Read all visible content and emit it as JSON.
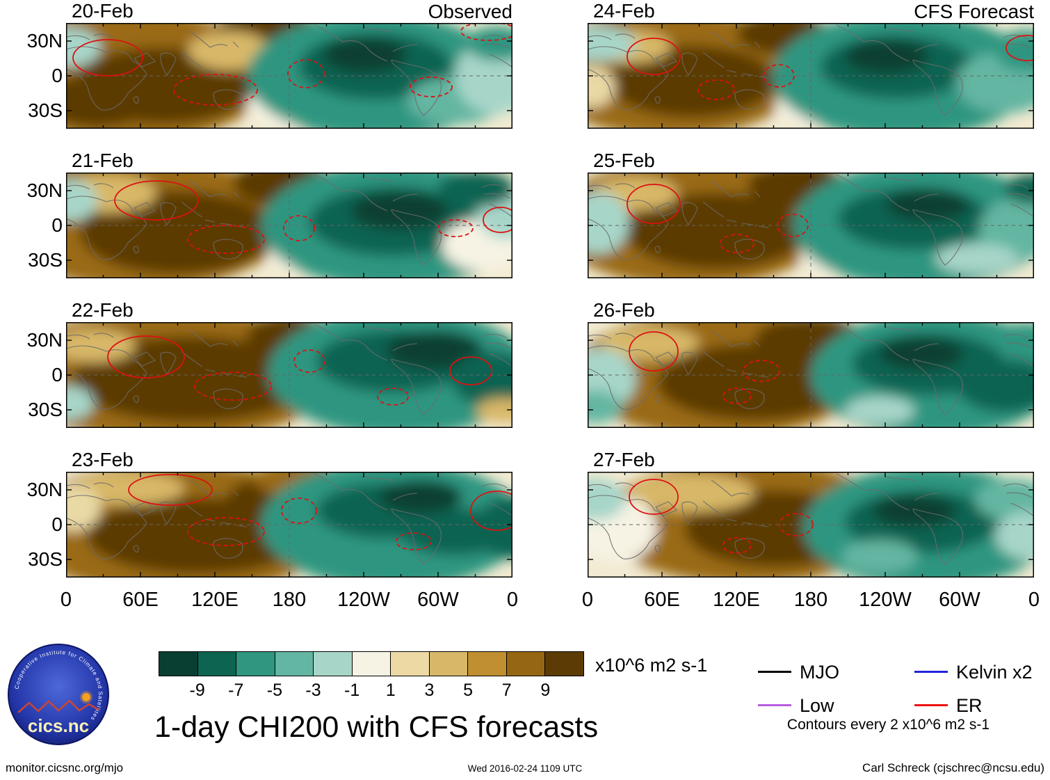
{
  "title": "1-day CHI200 with CFS forecasts",
  "headers": {
    "left": "Observed",
    "right": "CFS Forecast"
  },
  "logo": {
    "text": "cics.nc",
    "ring_text": "Cooperative Institute for Climate and Satellites"
  },
  "footer": {
    "left": "monitor.cicsnc.org/mjo",
    "center": "Wed 2016-02-24 1109 UTC",
    "right": "Carl Schreck (cjschrec@ncsu.edu)"
  },
  "chart_data": {
    "type": "heatmap",
    "description": "Eight longitude-time map panels of 200 hPa velocity potential (CHI200) anomalies; left column observed 20-23 Feb, right column CFS forecast 24-27 Feb. Brown = positive anomalies, teal = negative. Red contours mark ER wave activity.",
    "x_ticks": [
      "0",
      "60E",
      "120E",
      "180",
      "120W",
      "60W",
      "0"
    ],
    "y_ticks": [
      "30N",
      "0",
      "30S"
    ],
    "colorbar": {
      "tick_labels": [
        "-9",
        "-7",
        "-5",
        "-3",
        "-1",
        "1",
        "3",
        "5",
        "7",
        "9"
      ],
      "colors": [
        "#093f33",
        "#0d6451",
        "#2f9680",
        "#63b6a2",
        "#a7d6c9",
        "#f6f3e4",
        "#ecd9a4",
        "#d8b868",
        "#bf8f31",
        "#966712",
        "#5c3b04"
      ],
      "units": "x10^6 m2 s-1"
    },
    "legend": {
      "items": [
        {
          "label": "MJO",
          "color": "#000000"
        },
        {
          "label": "Low",
          "color": "#b85ce0"
        },
        {
          "label": "Kelvin x2",
          "color": "#2222dd"
        },
        {
          "label": "ER",
          "color": "#ee1111"
        }
      ],
      "note": "Contours every 2 x10^6 m2 s-1"
    },
    "panels": [
      {
        "date": "20-Feb",
        "column": "observed",
        "blobs": [
          [
            95,
            76,
            200,
            95,
            "#9a6a14"
          ],
          [
            140,
            90,
            130,
            55,
            "#5c3b04"
          ],
          [
            45,
            112,
            80,
            38,
            "#5c3b04"
          ],
          [
            290,
            12,
            75,
            32,
            "#5c3b04"
          ],
          [
            235,
            40,
            60,
            28,
            "#d8b868"
          ],
          [
            330,
            118,
            70,
            34,
            "#f6f3e4"
          ],
          [
            445,
            76,
            185,
            90,
            "#2f9680"
          ],
          [
            445,
            62,
            110,
            48,
            "#0d6451"
          ],
          [
            430,
            46,
            60,
            26,
            "#093f33"
          ],
          [
            560,
            112,
            70,
            34,
            "#63b6a2"
          ],
          [
            618,
            76,
            58,
            55,
            "#a7d6c9"
          ],
          [
            620,
            30,
            45,
            25,
            "#2f9680"
          ],
          [
            5,
            35,
            45,
            28,
            "#a7d6c9"
          ]
        ],
        "contours": [
          [
            60,
            50,
            50,
            26,
            0
          ],
          [
            215,
            96,
            60,
            22,
            1
          ],
          [
            345,
            73,
            26,
            20,
            1
          ],
          [
            525,
            92,
            30,
            14,
            1
          ],
          [
            608,
            12,
            40,
            13,
            1
          ]
        ]
      },
      {
        "date": "21-Feb",
        "column": "observed",
        "blobs": [
          [
            110,
            72,
            210,
            95,
            "#9a6a14"
          ],
          [
            160,
            86,
            140,
            60,
            "#5c3b04"
          ],
          [
            310,
            15,
            70,
            33,
            "#5c3b04"
          ],
          [
            60,
            30,
            70,
            28,
            "#d8b868"
          ],
          [
            350,
            112,
            60,
            30,
            "#f6f3e4"
          ],
          [
            470,
            76,
            190,
            90,
            "#2f9680"
          ],
          [
            470,
            70,
            120,
            50,
            "#0d6451"
          ],
          [
            480,
            55,
            70,
            28,
            "#093f33"
          ],
          [
            600,
            104,
            60,
            38,
            "#f6f3e4"
          ],
          [
            632,
            62,
            40,
            34,
            "#a7d6c9"
          ],
          [
            590,
            24,
            55,
            26,
            "#0d6451"
          ],
          [
            5,
            40,
            40,
            30,
            "#a7d6c9"
          ]
        ],
        "contours": [
          [
            130,
            40,
            60,
            28,
            0
          ],
          [
            230,
            96,
            55,
            20,
            1
          ],
          [
            335,
            80,
            22,
            18,
            1
          ],
          [
            560,
            80,
            25,
            12,
            1
          ],
          [
            625,
            68,
            25,
            18,
            0
          ]
        ]
      },
      {
        "date": "22-Feb",
        "column": "observed",
        "blobs": [
          [
            150,
            76,
            240,
            95,
            "#9a6a14"
          ],
          [
            180,
            82,
            170,
            62,
            "#5c3b04"
          ],
          [
            40,
            34,
            60,
            24,
            "#d8b868"
          ],
          [
            320,
            20,
            60,
            30,
            "#5c3b04"
          ],
          [
            380,
            122,
            50,
            26,
            "#a7d6c9"
          ],
          [
            480,
            72,
            190,
            92,
            "#2f9680"
          ],
          [
            470,
            56,
            110,
            45,
            "#0d6451"
          ],
          [
            530,
            40,
            70,
            28,
            "#093f33"
          ],
          [
            612,
            82,
            58,
            40,
            "#0d6451"
          ],
          [
            630,
            127,
            40,
            18,
            "#d8b868"
          ],
          [
            5,
            116,
            35,
            24,
            "#a7d6c9"
          ]
        ],
        "contours": [
          [
            115,
            50,
            55,
            30,
            0
          ],
          [
            240,
            92,
            55,
            20,
            1
          ],
          [
            350,
            56,
            22,
            16,
            1
          ],
          [
            582,
            70,
            30,
            20,
            0
          ],
          [
            470,
            107,
            22,
            12,
            1
          ]
        ]
      },
      {
        "date": "23-Feb",
        "column": "observed",
        "blobs": [
          [
            160,
            82,
            230,
            95,
            "#9a6a14"
          ],
          [
            190,
            92,
            160,
            55,
            "#5c3b04"
          ],
          [
            90,
            24,
            80,
            24,
            "#d8b868"
          ],
          [
            300,
            42,
            70,
            35,
            "#5c3b04"
          ],
          [
            330,
            10,
            60,
            25,
            "#9a6a14"
          ],
          [
            420,
            122,
            60,
            26,
            "#63b6a2"
          ],
          [
            470,
            76,
            190,
            92,
            "#2f9680"
          ],
          [
            460,
            56,
            100,
            40,
            "#0d6451"
          ],
          [
            560,
            86,
            80,
            34,
            "#0d6451"
          ],
          [
            510,
            36,
            60,
            24,
            "#093f33"
          ],
          [
            640,
            80,
            50,
            45,
            "#0d6451"
          ],
          [
            10,
            52,
            40,
            34,
            "#e9d9a5"
          ]
        ],
        "contours": [
          [
            150,
            26,
            60,
            22,
            0
          ],
          [
            230,
            86,
            55,
            20,
            1
          ],
          [
            335,
            56,
            25,
            18,
            1
          ],
          [
            500,
            100,
            25,
            12,
            1
          ],
          [
            620,
            56,
            38,
            28,
            0
          ]
        ]
      },
      {
        "date": "24-Feb",
        "column": "forecast",
        "blobs": [
          [
            120,
            72,
            190,
            92,
            "#9a6a14"
          ],
          [
            150,
            84,
            120,
            52,
            "#5c3b04"
          ],
          [
            280,
            15,
            65,
            30,
            "#5c3b04"
          ],
          [
            60,
            34,
            60,
            24,
            "#d8b868"
          ],
          [
            330,
            118,
            60,
            30,
            "#f6f3e4"
          ],
          [
            455,
            76,
            190,
            90,
            "#2f9680"
          ],
          [
            445,
            63,
            110,
            46,
            "#0d6451"
          ],
          [
            430,
            48,
            60,
            25,
            "#093f33"
          ],
          [
            600,
            86,
            70,
            44,
            "#63b6a2"
          ],
          [
            630,
            40,
            45,
            30,
            "#2f9680"
          ],
          [
            15,
            30,
            55,
            25,
            "#a7d6c9"
          ],
          [
            5,
            92,
            35,
            30,
            "#e9d9a5"
          ]
        ],
        "contours": [
          [
            95,
            48,
            38,
            26,
            0
          ],
          [
            185,
            96,
            26,
            14,
            1
          ],
          [
            275,
            76,
            22,
            16,
            1
          ],
          [
            632,
            36,
            30,
            18,
            0
          ]
        ]
      },
      {
        "date": "25-Feb",
        "column": "forecast",
        "blobs": [
          [
            150,
            72,
            200,
            92,
            "#9a6a14"
          ],
          [
            185,
            84,
            130,
            55,
            "#5c3b04"
          ],
          [
            300,
            18,
            70,
            32,
            "#5c3b04"
          ],
          [
            70,
            30,
            60,
            24,
            "#d8b868"
          ],
          [
            15,
            72,
            45,
            45,
            "#a7d6c9"
          ],
          [
            360,
            118,
            55,
            28,
            "#f6f3e4"
          ],
          [
            480,
            76,
            185,
            90,
            "#2f9680"
          ],
          [
            470,
            66,
            110,
            45,
            "#0d6451"
          ],
          [
            490,
            46,
            60,
            24,
            "#093f33"
          ],
          [
            618,
            82,
            55,
            44,
            "#63b6a2"
          ],
          [
            640,
            24,
            40,
            22,
            "#0d6451"
          ],
          [
            560,
            124,
            60,
            22,
            "#a7d6c9"
          ]
        ],
        "contours": [
          [
            95,
            45,
            38,
            28,
            0
          ],
          [
            215,
            102,
            24,
            13,
            1
          ],
          [
            295,
            76,
            22,
            16,
            1
          ]
        ]
      },
      {
        "date": "26-Feb",
        "column": "forecast",
        "blobs": [
          [
            190,
            74,
            210,
            92,
            "#9a6a14"
          ],
          [
            240,
            86,
            140,
            55,
            "#5c3b04"
          ],
          [
            320,
            26,
            80,
            34,
            "#5c3b04"
          ],
          [
            90,
            30,
            70,
            24,
            "#d8b868"
          ],
          [
            20,
            82,
            50,
            44,
            "#a7d6c9"
          ],
          [
            10,
            122,
            40,
            24,
            "#63b6a2"
          ],
          [
            500,
            76,
            180,
            90,
            "#2f9680"
          ],
          [
            490,
            60,
            110,
            45,
            "#0d6451"
          ],
          [
            480,
            45,
            60,
            24,
            "#093f33"
          ],
          [
            602,
            92,
            70,
            38,
            "#0d6451"
          ],
          [
            630,
            25,
            45,
            24,
            "#2f9680"
          ],
          [
            420,
            127,
            50,
            20,
            "#a7d6c9"
          ]
        ],
        "contours": [
          [
            95,
            42,
            35,
            28,
            0
          ],
          [
            250,
            70,
            26,
            15,
            1
          ],
          [
            215,
            106,
            20,
            11,
            1
          ]
        ]
      },
      {
        "date": "27-Feb",
        "column": "forecast",
        "blobs": [
          [
            230,
            72,
            210,
            90,
            "#9a6a14"
          ],
          [
            270,
            82,
            130,
            55,
            "#5c3b04"
          ],
          [
            150,
            30,
            90,
            28,
            "#d8b868"
          ],
          [
            40,
            82,
            60,
            48,
            "#f6f3e4"
          ],
          [
            10,
            40,
            45,
            30,
            "#a7d6c9"
          ],
          [
            490,
            80,
            180,
            88,
            "#2f9680"
          ],
          [
            480,
            72,
            110,
            45,
            "#0d6451"
          ],
          [
            470,
            56,
            60,
            24,
            "#093f33"
          ],
          [
            612,
            40,
            55,
            30,
            "#63b6a2"
          ],
          [
            632,
            92,
            45,
            34,
            "#a7d6c9"
          ],
          [
            420,
            122,
            55,
            24,
            "#63b6a2"
          ]
        ],
        "contours": [
          [
            95,
            36,
            35,
            25,
            0
          ],
          [
            300,
            76,
            24,
            16,
            1
          ],
          [
            215,
            106,
            20,
            11,
            1
          ]
        ]
      }
    ]
  }
}
